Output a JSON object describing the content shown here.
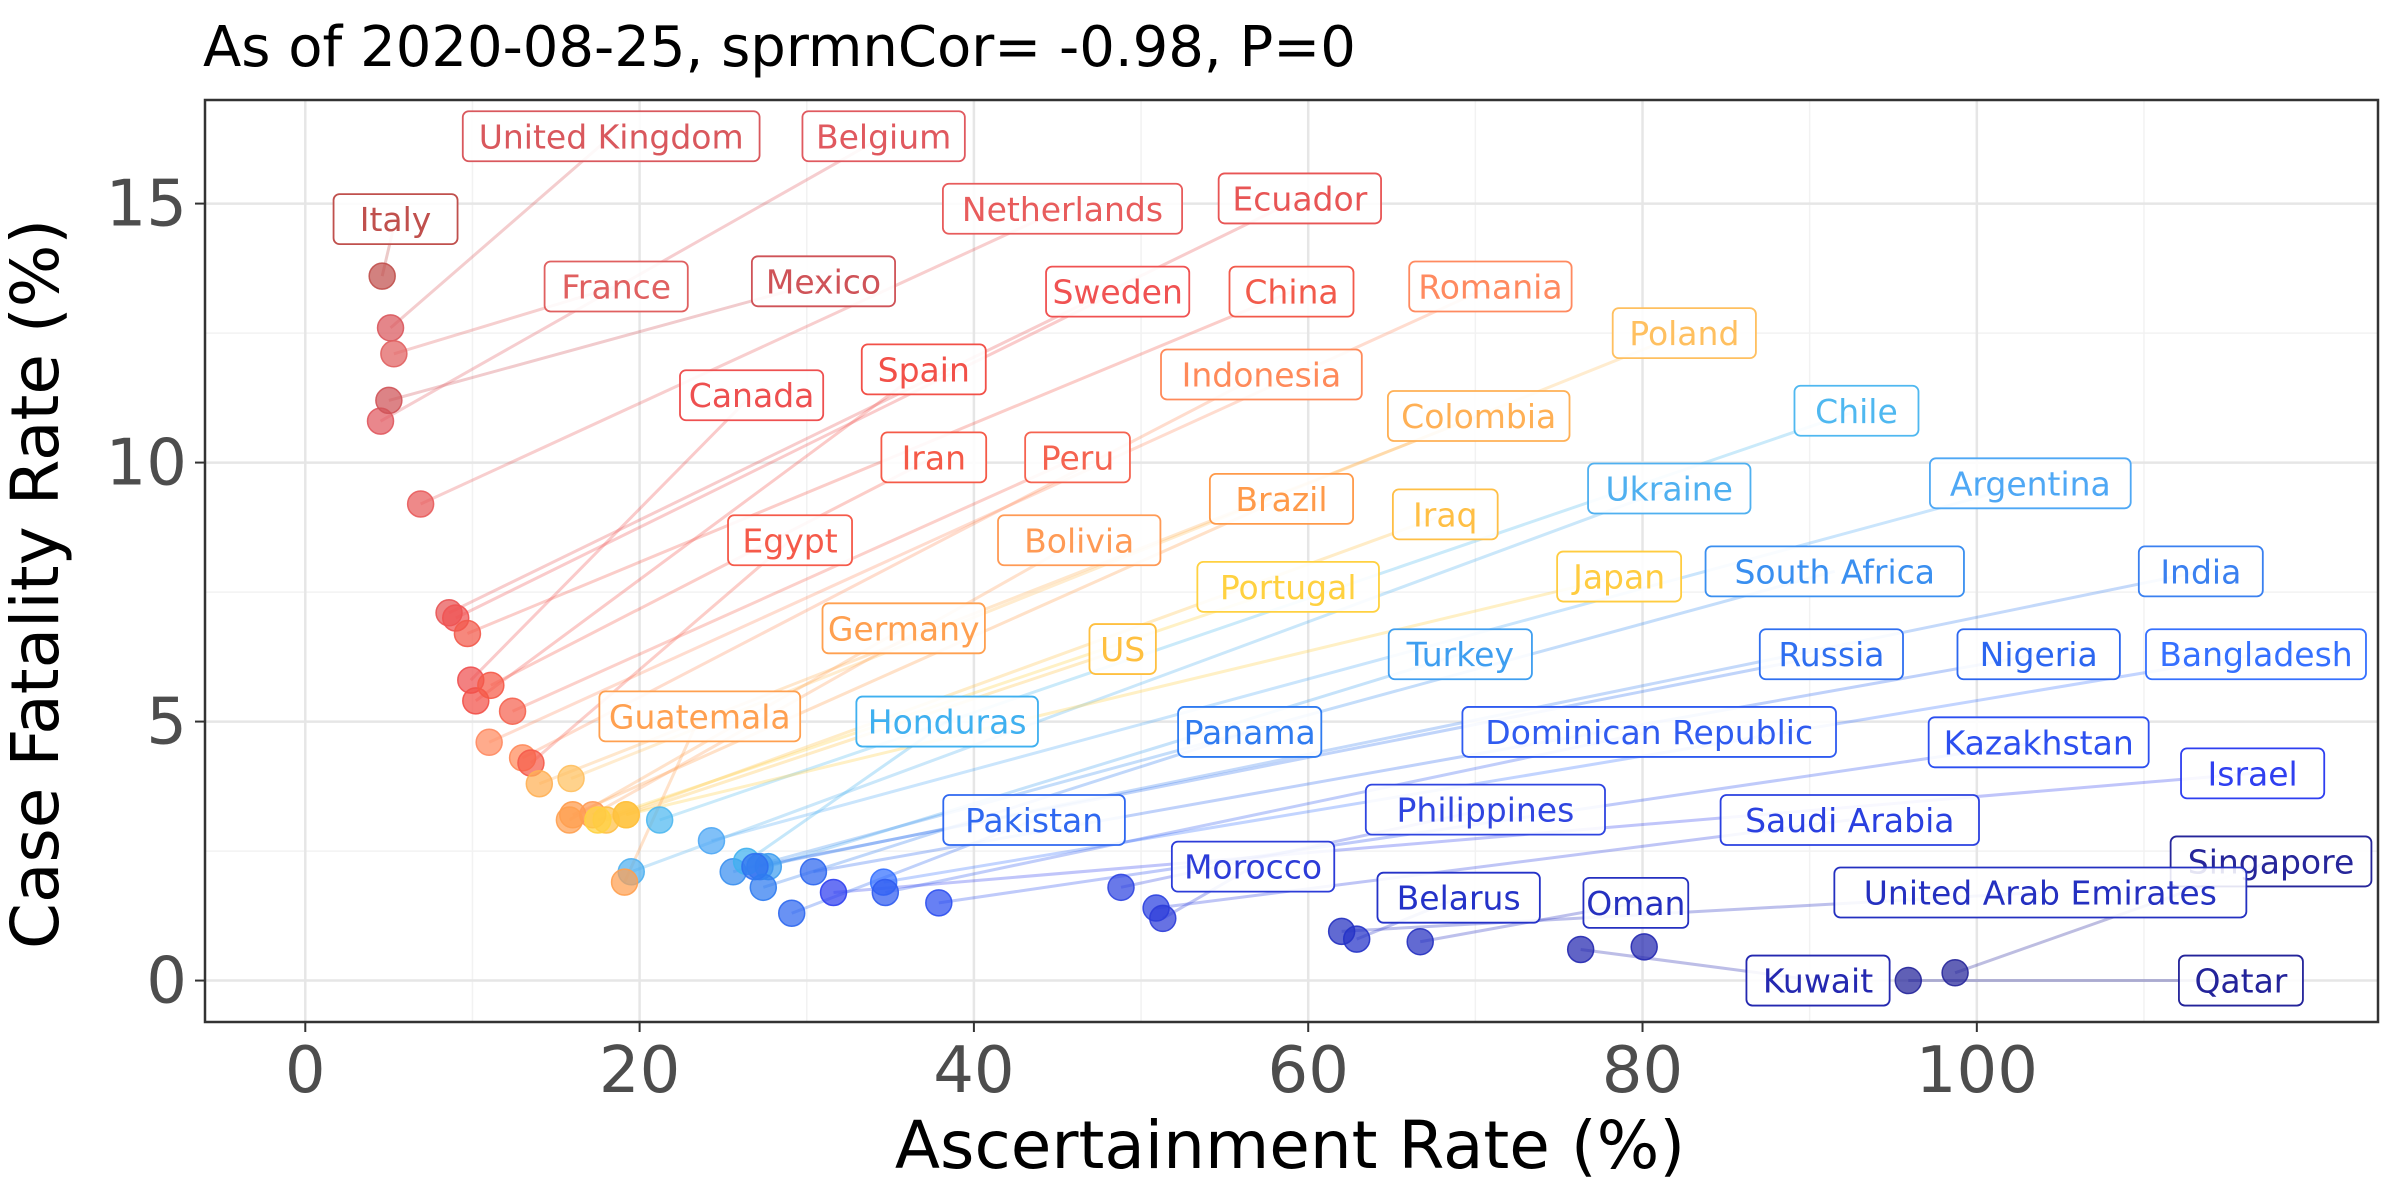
{
  "chart_data": {
    "type": "scatter",
    "title": "As of 2020-08-25, sprmnCor= -0.98, P=0",
    "xlabel": "Ascertainment Rate (%)",
    "ylabel": "Case Fatality Rate (%)",
    "xlim": [
      -6,
      124
    ],
    "ylim": [
      -0.8,
      17.0
    ],
    "xticks": [
      0,
      20,
      40,
      60,
      80,
      100
    ],
    "yticks": [
      0,
      5,
      10,
      15
    ],
    "x_tick_labels": [
      "0",
      "20",
      "40",
      "60",
      "80",
      "100"
    ],
    "y_tick_labels": [
      "0",
      "5",
      "10",
      "15"
    ],
    "grid": true,
    "legend": "none",
    "color_scale": "red (low ascertainment / high CFR) through orange, yellow, light blue to dark blue (high ascertainment / low CFR)",
    "points": [
      {
        "label": "Italy",
        "x": 4.6,
        "y": 13.6,
        "lx": 5.4,
        "ly": 14.7,
        "color": "#c0504d"
      },
      {
        "label": "United Kingdom",
        "x": 5.1,
        "y": 12.6,
        "lx": 18.3,
        "ly": 16.3,
        "color": "#d9585d"
      },
      {
        "label": "Belgium",
        "x": 4.5,
        "y": 10.8,
        "lx": 34.6,
        "ly": 16.3,
        "color": "#e0595f"
      },
      {
        "label": "France",
        "x": 5.3,
        "y": 12.1,
        "lx": 18.6,
        "ly": 13.4,
        "color": "#e06060"
      },
      {
        "label": "Mexico",
        "x": 5.0,
        "y": 11.2,
        "lx": 31.0,
        "ly": 13.5,
        "color": "#cf5358"
      },
      {
        "label": "Netherlands",
        "x": 6.9,
        "y": 9.2,
        "lx": 45.3,
        "ly": 14.9,
        "color": "#e85c5c"
      },
      {
        "label": "Ecuador",
        "x": 8.6,
        "y": 7.1,
        "lx": 59.5,
        "ly": 15.1,
        "color": "#e85555"
      },
      {
        "label": "Sweden",
        "x": 9.0,
        "y": 7.0,
        "lx": 48.6,
        "ly": 13.3,
        "color": "#f05252"
      },
      {
        "label": "China",
        "x": 9.7,
        "y": 6.7,
        "lx": 59.0,
        "ly": 13.3,
        "color": "#f25a4b"
      },
      {
        "label": "Canada",
        "x": 9.9,
        "y": 5.8,
        "lx": 26.7,
        "ly": 11.3,
        "color": "#ee5050"
      },
      {
        "label": "Spain",
        "x": 10.2,
        "y": 5.4,
        "lx": 37.0,
        "ly": 11.8,
        "color": "#f25048"
      },
      {
        "label": "Romania",
        "x": 11.0,
        "y": 4.6,
        "lx": 70.9,
        "ly": 13.4,
        "color": "#ff8a60"
      },
      {
        "label": "Iran",
        "x": 11.1,
        "y": 5.7,
        "lx": 37.6,
        "ly": 10.1,
        "color": "#f55a48"
      },
      {
        "label": "Peru",
        "x": 12.4,
        "y": 5.2,
        "lx": 46.2,
        "ly": 10.1,
        "color": "#f56350"
      },
      {
        "label": "Indonesia",
        "x": 13.0,
        "y": 4.3,
        "lx": 57.2,
        "ly": 11.7,
        "color": "#ff8a5a"
      },
      {
        "label": "Poland",
        "x": 15.9,
        "y": 3.9,
        "lx": 82.5,
        "ly": 12.5,
        "color": "#ffc060"
      },
      {
        "label": "Egypt",
        "x": 13.5,
        "y": 4.2,
        "lx": 29.0,
        "ly": 8.5,
        "color": "#f55a4a"
      },
      {
        "label": "Colombia",
        "x": 14.0,
        "y": 3.8,
        "lx": 70.2,
        "ly": 10.9,
        "color": "#ffb055"
      },
      {
        "label": "Brazil",
        "x": 16.0,
        "y": 3.2,
        "lx": 58.4,
        "ly": 9.3,
        "color": "#ff9a4a"
      },
      {
        "label": "Bolivia",
        "x": 17.2,
        "y": 3.2,
        "lx": 46.3,
        "ly": 8.5,
        "color": "#ff9a55"
      },
      {
        "label": "Iraq",
        "x": 18.0,
        "y": 3.1,
        "lx": 68.2,
        "ly": 9.0,
        "color": "#ffbf45"
      },
      {
        "label": "Chile",
        "x": 21.2,
        "y": 3.1,
        "lx": 92.8,
        "ly": 11.0,
        "color": "#4fb8f0"
      },
      {
        "label": "Ukraine",
        "x": 19.5,
        "y": 2.1,
        "lx": 81.6,
        "ly": 9.5,
        "color": "#4fb0f0"
      },
      {
        "label": "Argentina",
        "x": 24.3,
        "y": 2.7,
        "lx": 103.2,
        "ly": 9.6,
        "color": "#4fa8f5"
      },
      {
        "label": "Portugal",
        "x": 17.5,
        "y": 3.1,
        "lx": 58.8,
        "ly": 7.6,
        "color": "#ffd140"
      },
      {
        "label": "Japan",
        "x": 19.2,
        "y": 3.2,
        "lx": 78.6,
        "ly": 7.8,
        "color": "#ffcc40"
      },
      {
        "label": "Germany",
        "x": 15.8,
        "y": 3.1,
        "lx": 35.8,
        "ly": 6.8,
        "color": "#ffa050"
      },
      {
        "label": "US",
        "x": 19.2,
        "y": 3.2,
        "lx": 48.9,
        "ly": 6.4,
        "color": "#ffc040"
      },
      {
        "label": "South Africa",
        "x": 25.6,
        "y": 2.1,
        "lx": 91.5,
        "ly": 7.9,
        "color": "#3a8ff0"
      },
      {
        "label": "India",
        "x": 27.2,
        "y": 2.2,
        "lx": 113.4,
        "ly": 7.9,
        "color": "#3a80f0"
      },
      {
        "label": "Guatemala",
        "x": 19.1,
        "y": 1.9,
        "lx": 23.6,
        "ly": 5.1,
        "color": "#ffa050"
      },
      {
        "label": "Honduras",
        "x": 26.4,
        "y": 2.3,
        "lx": 38.4,
        "ly": 5.0,
        "color": "#3fb0f0"
      },
      {
        "label": "Turkey",
        "x": 27.7,
        "y": 2.2,
        "lx": 69.1,
        "ly": 6.3,
        "color": "#3e9ef0"
      },
      {
        "label": "Russia",
        "x": 26.9,
        "y": 2.2,
        "lx": 91.3,
        "ly": 6.3,
        "color": "#2f6ff0"
      },
      {
        "label": "Nigeria",
        "x": 30.4,
        "y": 2.1,
        "lx": 103.7,
        "ly": 6.3,
        "color": "#2c66f0"
      },
      {
        "label": "Bangladesh",
        "x": 34.6,
        "y": 1.9,
        "lx": 116.7,
        "ly": 6.3,
        "color": "#3570ff"
      },
      {
        "label": "Panama",
        "x": 27.4,
        "y": 1.8,
        "lx": 56.5,
        "ly": 4.8,
        "color": "#2f7bf0"
      },
      {
        "label": "Dominican Republic",
        "x": 34.7,
        "y": 1.7,
        "lx": 80.4,
        "ly": 4.8,
        "color": "#2f5bf0"
      },
      {
        "label": "Kazakhstan",
        "x": 37.9,
        "y": 1.5,
        "lx": 103.7,
        "ly": 4.6,
        "color": "#2c4ff0"
      },
      {
        "label": "Israel",
        "x": 31.6,
        "y": 1.7,
        "lx": 116.5,
        "ly": 4.0,
        "color": "#2f3ff0"
      },
      {
        "label": "Pakistan",
        "x": 29.1,
        "y": 1.3,
        "lx": 43.6,
        "ly": 3.1,
        "color": "#2f68f0"
      },
      {
        "label": "Philippines",
        "x": 48.8,
        "y": 1.8,
        "lx": 70.6,
        "ly": 3.3,
        "color": "#2f45e0"
      },
      {
        "label": "Saudi Arabia",
        "x": 50.9,
        "y": 1.4,
        "lx": 92.4,
        "ly": 3.1,
        "color": "#2a40e0"
      },
      {
        "label": "Morocco",
        "x": 51.3,
        "y": 1.2,
        "lx": 56.7,
        "ly": 2.2,
        "color": "#2c3cd8"
      },
      {
        "label": "Singapore",
        "x": 98.7,
        "y": 0.15,
        "lx": 117.6,
        "ly": 2.3,
        "color": "#26269a"
      },
      {
        "label": "United Arab Emirates",
        "x": 62.0,
        "y": 0.95,
        "lx": 103.8,
        "ly": 1.7,
        "color": "#2430c0"
      },
      {
        "label": "Belarus",
        "x": 62.9,
        "y": 0.8,
        "lx": 69.0,
        "ly": 1.6,
        "color": "#2432c8"
      },
      {
        "label": "Oman",
        "x": 66.7,
        "y": 0.75,
        "lx": 79.6,
        "ly": 1.5,
        "color": "#2530c0"
      },
      {
        "label": "Kuwait",
        "x": 76.3,
        "y": 0.6,
        "lx": 90.5,
        "ly": 0.0,
        "color": "#2428b0"
      },
      {
        "label": "Qatar",
        "x": 95.9,
        "y": 0.0,
        "lx": 115.8,
        "ly": 0.0,
        "color": "#23239a"
      },
      {
        "x": 80.1,
        "y": 0.65,
        "color": "#2428b0"
      }
    ]
  }
}
